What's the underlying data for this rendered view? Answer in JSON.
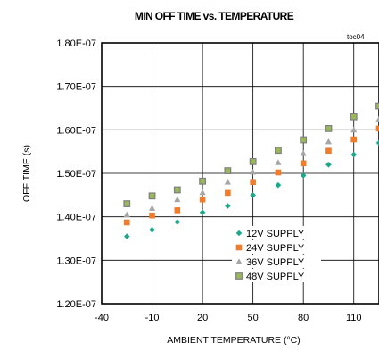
{
  "chart_data": {
    "type": "scatter",
    "title": "MIN OFF TIME vs. TEMPERATURE",
    "annotation": "toc04",
    "xlabel": "AMBIENT TEMPERATURE (°C)",
    "ylabel": "OFF TIME (s)",
    "xlim": [
      -40,
      125
    ],
    "ylim": [
      1.2e-07,
      1.8e-07
    ],
    "x_ticks": [
      "-40",
      "-10",
      "20",
      "50",
      "80",
      "110"
    ],
    "y_ticks": [
      "1.20E-07",
      "1.30E-07",
      "1.40E-07",
      "1.50E-07",
      "1.60E-07",
      "1.70E-07",
      "1.80E-07"
    ],
    "grid": true,
    "legend_position": "bottom-right",
    "x": [
      -25,
      -10,
      5,
      20,
      35,
      50,
      65,
      80,
      95,
      110,
      125
    ],
    "series": [
      {
        "name": "12V SUPPLY",
        "marker": "diamond",
        "color": "#1aaa8a",
        "values": [
          1.355e-07,
          1.37e-07,
          1.388e-07,
          1.41e-07,
          1.425e-07,
          1.45e-07,
          1.473e-07,
          1.495e-07,
          1.52e-07,
          1.543e-07,
          1.57e-07
        ]
      },
      {
        "name": "24V SUPPLY",
        "marker": "square",
        "color": "#f07c2c",
        "values": [
          1.387e-07,
          1.403e-07,
          1.415e-07,
          1.44e-07,
          1.455e-07,
          1.48e-07,
          1.502e-07,
          1.523e-07,
          1.552e-07,
          1.578e-07,
          1.603e-07
        ]
      },
      {
        "name": "36V SUPPLY",
        "marker": "triangle",
        "color": "#a6a6a6",
        "values": [
          1.405e-07,
          1.42e-07,
          1.44e-07,
          1.456e-07,
          1.48e-07,
          1.503e-07,
          1.525e-07,
          1.546e-07,
          1.573e-07,
          1.6e-07,
          1.625e-07
        ]
      },
      {
        "name": "48V SUPPLY",
        "marker": "square",
        "color": "#9ab85a",
        "border_color": "#7f7f7f",
        "values": [
          1.43e-07,
          1.448e-07,
          1.462e-07,
          1.482e-07,
          1.506e-07,
          1.527e-07,
          1.553e-07,
          1.577e-07,
          1.603e-07,
          1.63e-07,
          1.655e-07
        ]
      }
    ]
  }
}
